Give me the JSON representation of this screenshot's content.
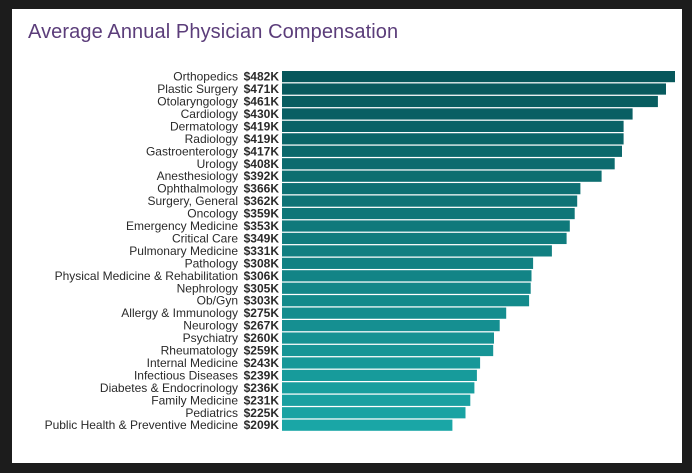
{
  "chart_data": {
    "type": "bar",
    "orientation": "horizontal",
    "title": "Average Annual Physician Compensation",
    "xlabel": "",
    "ylabel": "",
    "xlim": [
      0,
      482
    ],
    "grid": false,
    "legend": "none",
    "colors": {
      "darkest": "#07575b",
      "lightest": "#1aa6a6",
      "title": "#5b3d7a"
    },
    "categories": [
      "Orthopedics",
      "Plastic Surgery",
      "Otolaryngology",
      "Cardiology",
      "Dermatology",
      "Radiology",
      "Gastroenterology",
      "Urology",
      "Anesthesiology",
      "Ophthalmology",
      "Surgery, General",
      "Oncology",
      "Emergency Medicine",
      "Critical Care",
      "Pulmonary Medicine",
      "Pathology",
      "Physical Medicine & Rehabilitation",
      "Nephrology",
      "Ob/Gyn",
      "Allergy & Immunology",
      "Neurology",
      "Psychiatry",
      "Rheumatology",
      "Internal Medicine",
      "Infectious Diseases",
      "Diabetes & Endocrinology",
      "Family Medicine",
      "Pediatrics",
      "Public Health & Preventive Medicine"
    ],
    "values": [
      482,
      471,
      461,
      430,
      419,
      419,
      417,
      408,
      392,
      366,
      362,
      359,
      353,
      349,
      331,
      308,
      306,
      305,
      303,
      275,
      267,
      260,
      259,
      243,
      239,
      236,
      231,
      225,
      209
    ],
    "value_labels": [
      "$482K",
      "$471K",
      "$461K",
      "$430K",
      "$419K",
      "$419K",
      "$417K",
      "$408K",
      "$392K",
      "$366K",
      "$362K",
      "$359K",
      "$353K",
      "$349K",
      "$331K",
      "$308K",
      "$306K",
      "$305K",
      "$303K",
      "$275K",
      "$267K",
      "$260K",
      "$259K",
      "$243K",
      "$239K",
      "$236K",
      "$231K",
      "$225K",
      "$209K"
    ]
  }
}
